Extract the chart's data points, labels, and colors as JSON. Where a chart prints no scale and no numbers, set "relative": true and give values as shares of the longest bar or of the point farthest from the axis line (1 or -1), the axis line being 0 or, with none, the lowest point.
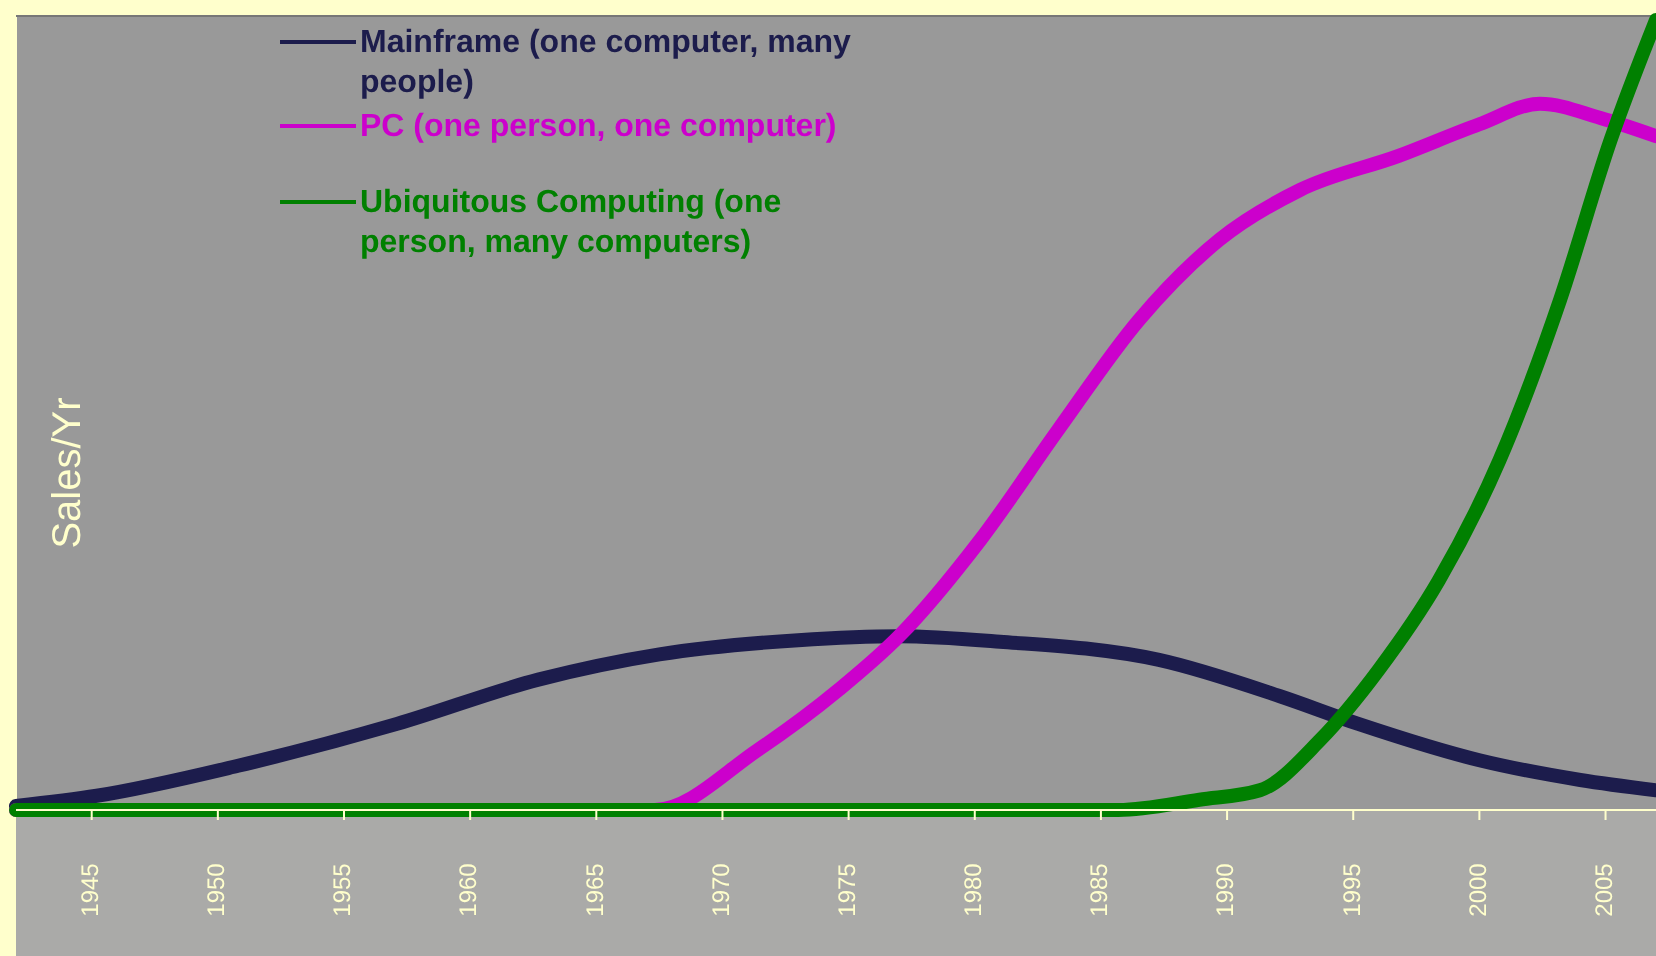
{
  "chart_data": {
    "type": "line",
    "ylabel": "Sales/Yr",
    "relative": true,
    "xlim": [
      1942,
      2007
    ],
    "xticks": [
      1945,
      1950,
      1955,
      1960,
      1965,
      1970,
      1975,
      1980,
      1985,
      1990,
      1995,
      2000,
      2005
    ],
    "legend": "top",
    "marker": "none",
    "line_style": "solid",
    "series": [
      {
        "name": "Mainframe (one computer, many people)",
        "color": "#1c1c4c",
        "x": [
          1942,
          1945.2,
          1950.8,
          1957.1,
          1962.7,
          1967.5,
          1973,
          1977,
          1981,
          1987.3,
          1992.1,
          1995.2,
          2000,
          2004,
          2007
        ],
        "values": [
          0.005,
          0.018,
          0.056,
          0.109,
          0.165,
          0.197,
          0.215,
          0.22,
          0.213,
          0.19,
          0.144,
          0.109,
          0.063,
          0.038,
          0.025
        ]
      },
      {
        "name": "PC (one person, one computer)",
        "color": "#cc00cc",
        "x": [
          1942,
          1967.3,
          1971.4,
          1974.6,
          1977,
          1980.2,
          1983.3,
          1986.5,
          1989.7,
          1992.9,
          1996.8,
          2000,
          2002.4,
          2004.8,
          2007
        ],
        "values": [
          0,
          0,
          0.076,
          0.152,
          0.22,
          0.341,
          0.481,
          0.62,
          0.722,
          0.785,
          0.828,
          0.868,
          0.894,
          0.876,
          0.853
        ]
      },
      {
        "name": "Ubiquitous Computing (one person, many computers)",
        "color": "#008000",
        "x": [
          1942,
          1985.7,
          1988.9,
          1991.3,
          1993.7,
          1996,
          1998.4,
          2000.8,
          2003.2,
          2005.2,
          2007
        ],
        "values": [
          0,
          0,
          0.013,
          0.025,
          0.089,
          0.177,
          0.291,
          0.443,
          0.646,
          0.848,
          1
        ]
      }
    ]
  }
}
